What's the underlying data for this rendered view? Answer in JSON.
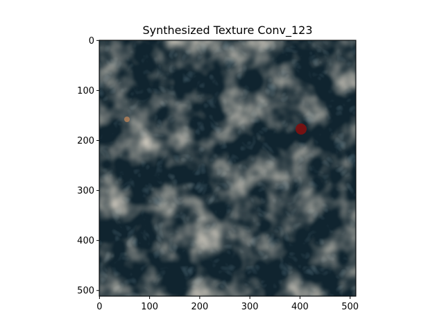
{
  "figure": {
    "title": "Synthesized Texture Conv_123",
    "background": "#ffffff"
  },
  "image": {
    "description_colors": {
      "dark": "#0f2430",
      "mid": "#243e49",
      "light": "#c3b39a",
      "accent": "#8a1414"
    },
    "width": 512,
    "height": 512
  },
  "axes": {
    "x_ticks": [
      "0",
      "100",
      "200",
      "300",
      "400",
      "500"
    ],
    "y_ticks": [
      "0",
      "100",
      "200",
      "300",
      "400",
      "500"
    ],
    "xlim": [
      0,
      512
    ],
    "ylim": [
      512,
      0
    ]
  }
}
